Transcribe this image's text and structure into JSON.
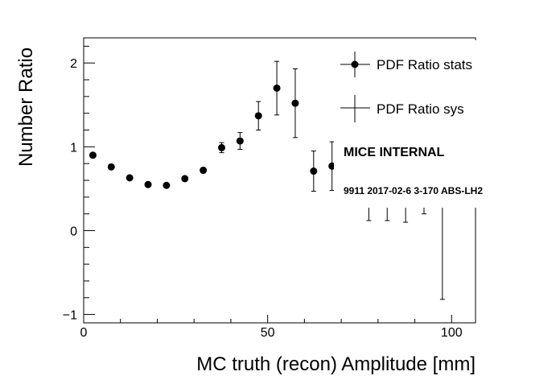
{
  "chart_data": {
    "type": "scatter",
    "title": "",
    "xlabel": "MC truth (recon) Amplitude [mm]",
    "ylabel": "Number Ratio",
    "xlim": [
      0,
      106.5
    ],
    "ylim": [
      -1.1,
      2.3
    ],
    "xticks": [
      0,
      50,
      100
    ],
    "xtick_labels": [
      "0",
      "50",
      "100"
    ],
    "yticks": [
      -1,
      0,
      1,
      2
    ],
    "ytick_labels": [
      "−1",
      "0",
      "1",
      "2"
    ],
    "grid": false,
    "legend_position": "top-right",
    "series": [
      {
        "name": "PDF Ratio stats",
        "marker": "filled-circle",
        "color": "#000000",
        "points": [
          {
            "x": 2.5,
            "y": 0.9,
            "err": 0.02
          },
          {
            "x": 7.5,
            "y": 0.76,
            "err": 0.02
          },
          {
            "x": 12.5,
            "y": 0.63,
            "err": 0.02
          },
          {
            "x": 17.5,
            "y": 0.55,
            "err": 0.02
          },
          {
            "x": 22.5,
            "y": 0.54,
            "err": 0.02
          },
          {
            "x": 27.5,
            "y": 0.62,
            "err": 0.02
          },
          {
            "x": 32.5,
            "y": 0.72,
            "err": 0.03
          },
          {
            "x": 37.5,
            "y": 0.99,
            "err": 0.06
          },
          {
            "x": 42.5,
            "y": 1.07,
            "err": 0.1
          },
          {
            "x": 47.5,
            "y": 1.37,
            "err": 0.17
          },
          {
            "x": 52.5,
            "y": 1.7,
            "err": 0.32
          },
          {
            "x": 57.5,
            "y": 1.52,
            "err": 0.41
          },
          {
            "x": 62.5,
            "y": 0.71,
            "err": 0.24
          },
          {
            "x": 67.5,
            "y": 0.77,
            "err": 0.29
          },
          {
            "x": 77.5,
            "y": 0.4,
            "err": 0.28
          },
          {
            "x": 82.5,
            "y": 0.4,
            "err": 0.28
          },
          {
            "x": 87.5,
            "y": 0.4,
            "err": 0.3
          },
          {
            "x": 92.5,
            "y": 0.45,
            "err": 0.25
          },
          {
            "x": 97.5,
            "y": 0.4,
            "err": 1.22
          }
        ]
      },
      {
        "name": "PDF Ratio sys",
        "marker": "none",
        "color": "#000000",
        "points": []
      }
    ],
    "annotations": {
      "label": "MICE INTERNAL",
      "run_info": "9911 2017-02-6 3-170 ABS-LH2"
    }
  }
}
